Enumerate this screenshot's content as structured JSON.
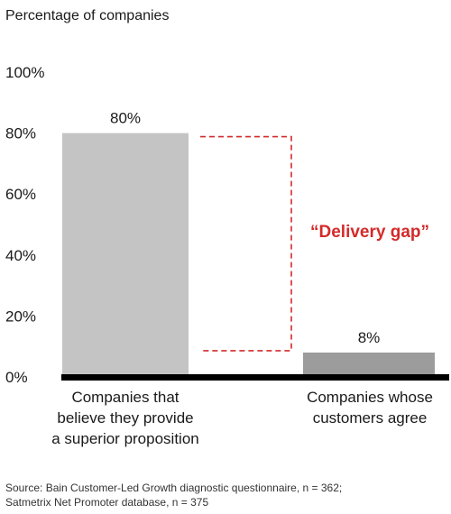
{
  "chart_data": {
    "type": "bar",
    "ylabel": "Percentage of companies",
    "ylim": [
      0,
      100
    ],
    "yticks": [
      "0%",
      "20%",
      "40%",
      "60%",
      "80%",
      "100%"
    ],
    "categories": [
      [
        "Companies that",
        "believe they provide",
        "a superior proposition"
      ],
      [
        "Companies whose",
        "customers agree"
      ]
    ],
    "values": [
      80,
      8
    ],
    "data_labels": [
      "80%",
      "8%"
    ],
    "bar_colors": [
      "#c4c4c4",
      "#9c9c9c"
    ],
    "annotation": {
      "text": "“Delivery gap”",
      "color": "#d42a2a",
      "from_value": 80,
      "to_value": 8
    },
    "source": [
      "Source: Bain Customer-Led Growth diagnostic questionnaire, n = 362;",
      "Satmetrix Net Promoter database, n = 375"
    ]
  }
}
